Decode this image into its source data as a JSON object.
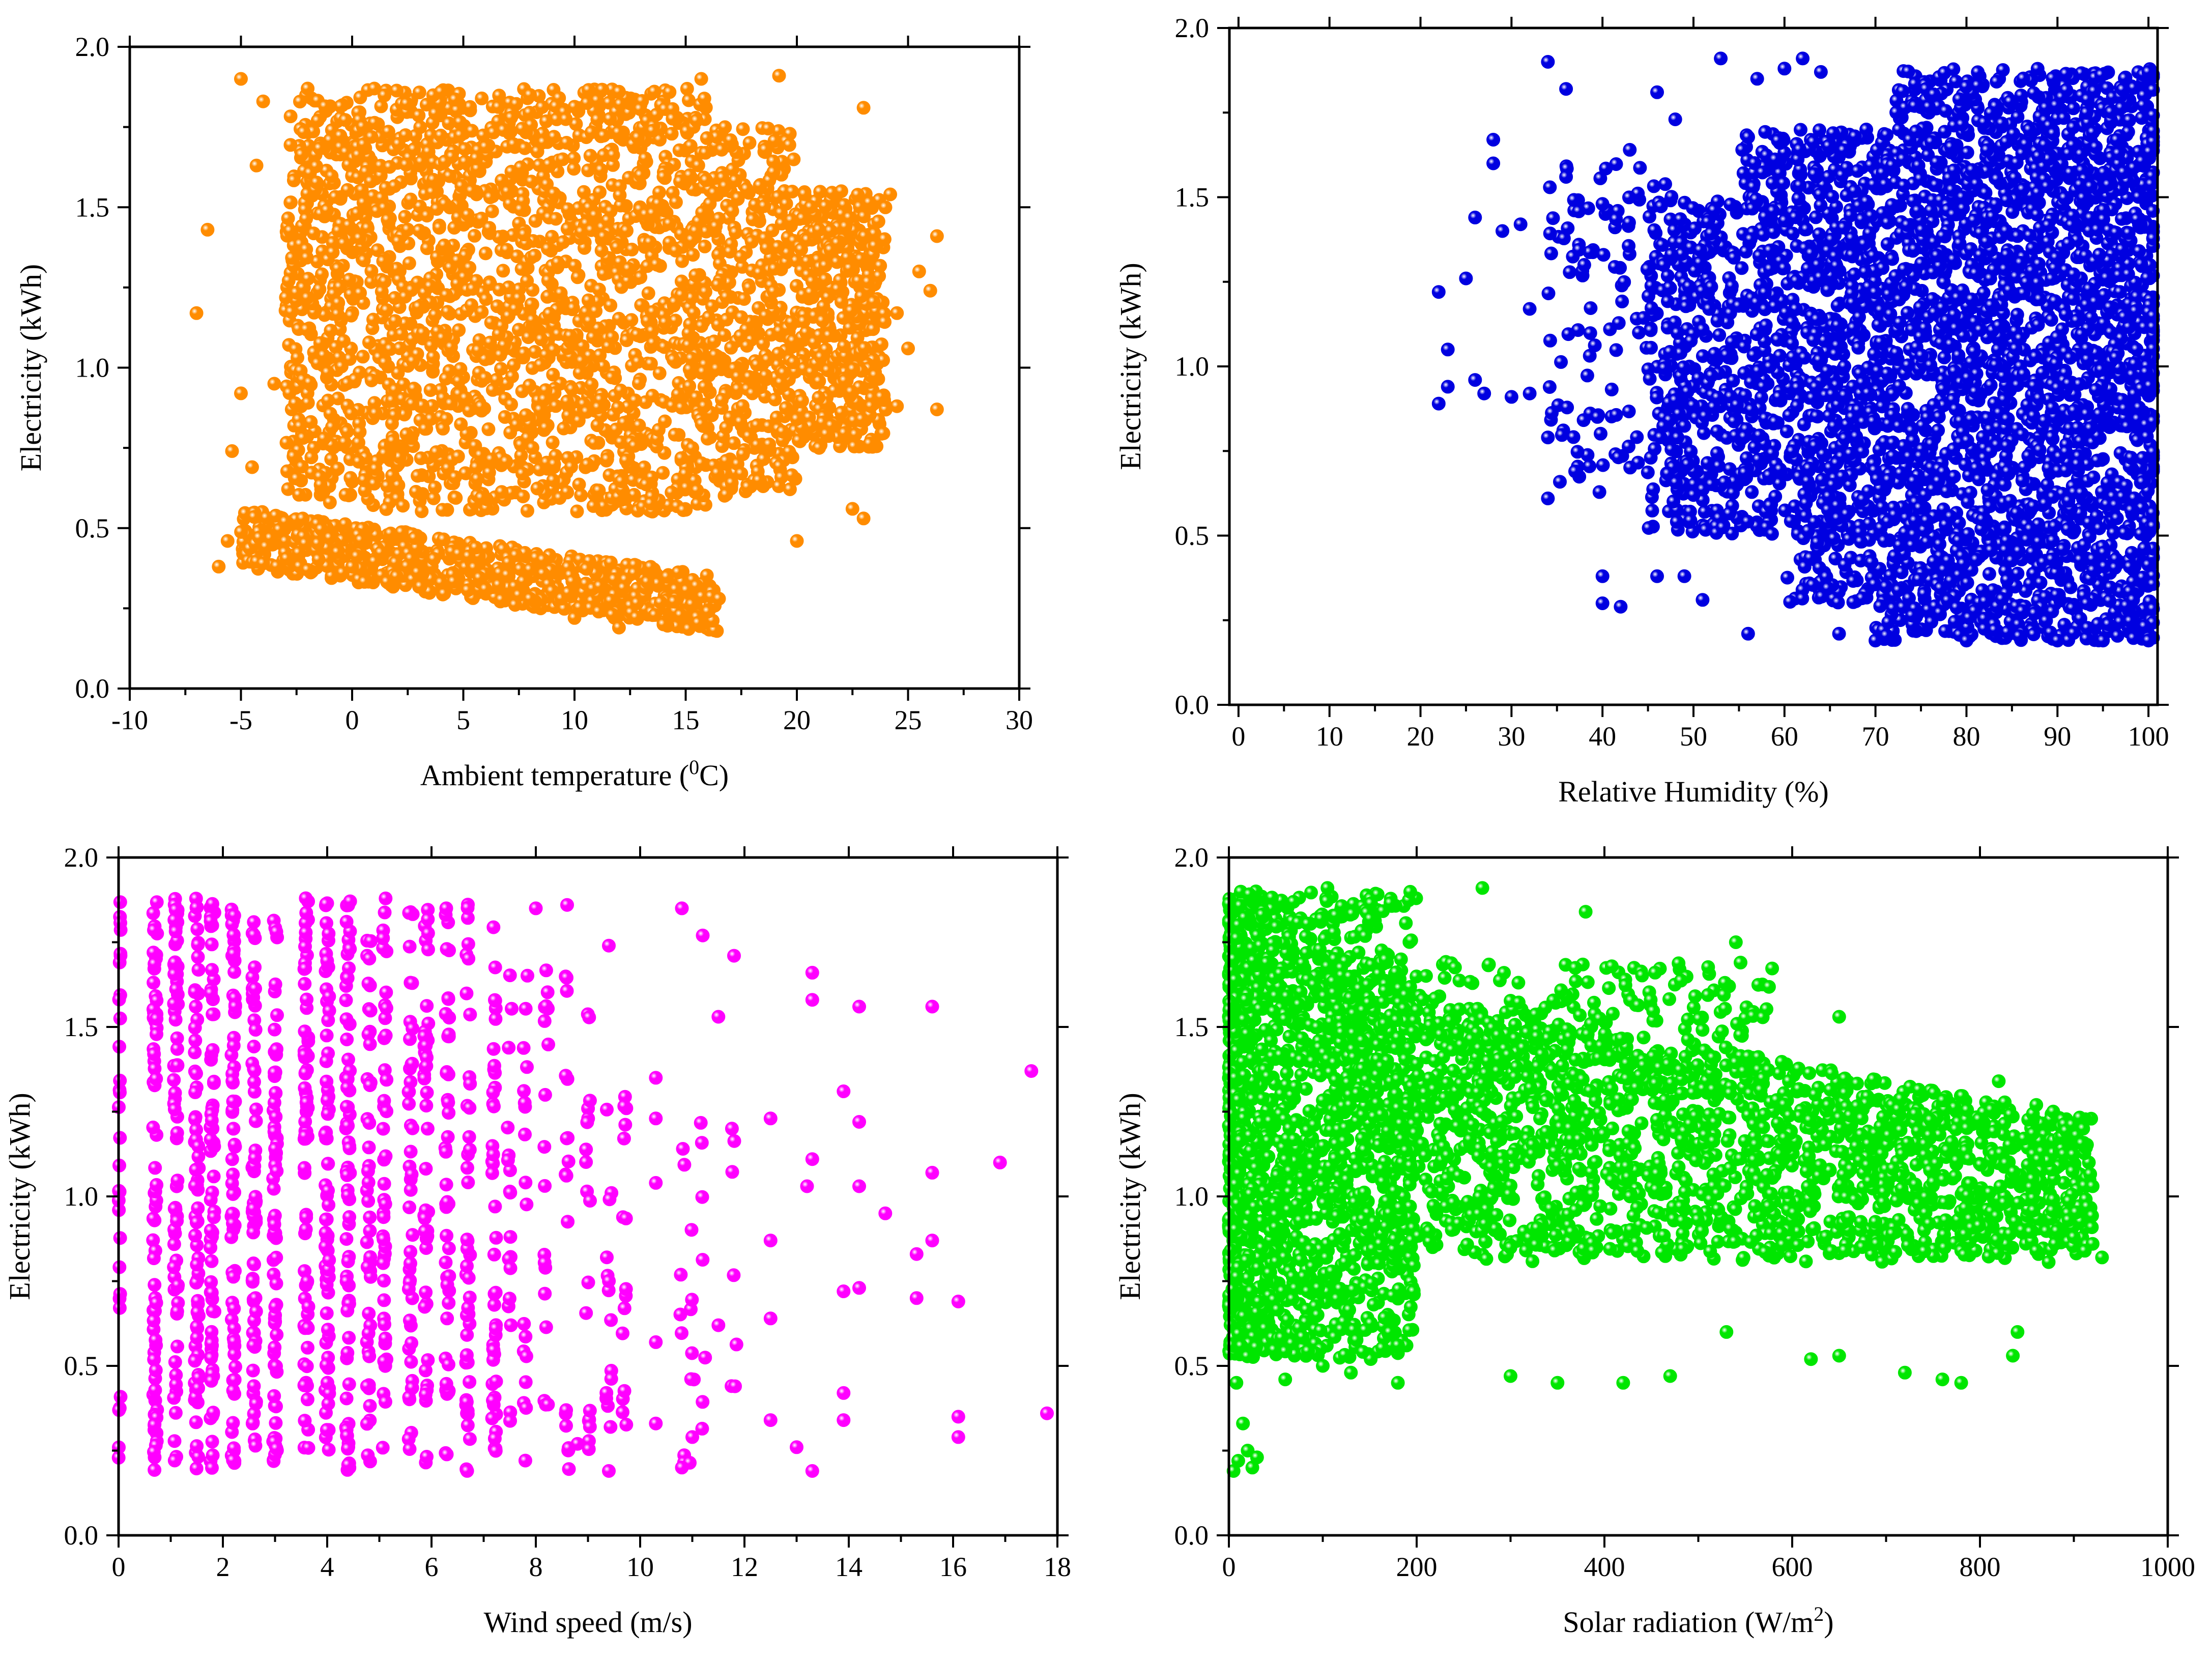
{
  "figure": {
    "description_panels": 4
  },
  "chart_data": [
    {
      "type": "scatter",
      "title": "",
      "xlabel": "Ambient temperature (",
      "xlabel_sup": "0",
      "xlabel_tail": "C)",
      "ylabel": "Electricity (kWh)",
      "xlim": [
        -10,
        30
      ],
      "ylim": [
        0.0,
        2.0
      ],
      "xticks": [
        "-10",
        "-5",
        "0",
        "5",
        "10",
        "15",
        "20",
        "25",
        "30"
      ],
      "yticks": [
        "0.0",
        "0.5",
        "1.0",
        "1.5",
        "2.0"
      ],
      "color": "#ff8c00",
      "series": [
        {
          "name": "Ambient temperature",
          "points": [
            [
              -7.0,
              1.17
            ],
            [
              -6.5,
              1.43
            ],
            [
              -6.0,
              0.38
            ],
            [
              -5.6,
              0.46
            ],
            [
              -5.4,
              0.74
            ],
            [
              -5.0,
              1.9
            ],
            [
              -5.0,
              0.92
            ],
            [
              -4.5,
              0.69
            ],
            [
              -4.3,
              1.63
            ],
            [
              -4.0,
              1.83
            ],
            [
              -3.5,
              0.95
            ],
            [
              -2.0,
              1.87
            ],
            [
              -1.0,
              0.58
            ],
            [
              1.0,
              1.87
            ],
            [
              4.0,
              1.86
            ],
            [
              8.0,
              1.85
            ],
            [
              12.0,
              1.86
            ],
            [
              15.7,
              1.9
            ],
            [
              19.2,
              1.91
            ],
            [
              23.0,
              1.81
            ],
            [
              23.5,
              1.38
            ],
            [
              24.2,
              1.54
            ],
            [
              24.5,
              1.17
            ],
            [
              24.5,
              0.88
            ],
            [
              25.0,
              1.06
            ],
            [
              25.5,
              1.3
            ],
            [
              26.0,
              1.24
            ],
            [
              26.3,
              1.41
            ],
            [
              26.3,
              0.87
            ],
            [
              23.0,
              0.53
            ],
            [
              22.5,
              0.56
            ],
            [
              21.0,
              0.75
            ],
            [
              20.0,
              0.46
            ],
            [
              17.5,
              0.67
            ],
            [
              -3.0,
              0.52
            ],
            [
              -1.0,
              0.47
            ],
            [
              16.0,
              0.24
            ],
            [
              14.0,
              0.2
            ],
            [
              12.0,
              0.19
            ],
            [
              10.0,
              0.22
            ],
            [
              8.0,
              0.28
            ],
            [
              6.0,
              0.31
            ],
            [
              4.0,
              0.33
            ],
            [
              2.0,
              0.35
            ],
            [
              0.0,
              0.38
            ],
            [
              -2.0,
              0.37
            ],
            [
              -4.0,
              0.39
            ],
            [
              16.5,
              0.28
            ],
            [
              18.0,
              0.92
            ],
            [
              20.0,
              0.84
            ],
            [
              22.0,
              0.86
            ],
            [
              21.0,
              1.43
            ],
            [
              22.0,
              1.55
            ]
          ]
        }
      ]
    },
    {
      "type": "scatter",
      "title": "",
      "xlabel": "Relative Humidity (%)",
      "ylabel": "Electricity (kWh)",
      "xlim": [
        -1,
        101
      ],
      "ylim": [
        0.0,
        2.0
      ],
      "xticks": [
        "0",
        "10",
        "20",
        "30",
        "40",
        "50",
        "60",
        "70",
        "80",
        "90",
        "100"
      ],
      "yticks": [
        "0.0",
        "0.5",
        "1.0",
        "1.5",
        "2.0"
      ],
      "color": "#0000e0",
      "series": [
        {
          "name": "Relative Humidity",
          "points": [
            [
              22.0,
              0.89
            ],
            [
              22.0,
              1.22
            ],
            [
              23.0,
              0.94
            ],
            [
              23.0,
              1.05
            ],
            [
              25.0,
              1.26
            ],
            [
              26.0,
              1.44
            ],
            [
              26.0,
              0.96
            ],
            [
              27.0,
              0.92
            ],
            [
              28.0,
              1.6
            ],
            [
              28.0,
              1.67
            ],
            [
              29.0,
              1.4
            ],
            [
              30.0,
              0.91
            ],
            [
              31.0,
              1.42
            ],
            [
              32.0,
              1.17
            ],
            [
              32.0,
              0.92
            ],
            [
              34.0,
              1.9
            ],
            [
              34.0,
              0.79
            ],
            [
              34.0,
              0.61
            ],
            [
              36.0,
              1.82
            ],
            [
              36.0,
              1.56
            ],
            [
              37.0,
              0.69
            ],
            [
              40.0,
              0.3
            ],
            [
              40.0,
              0.38
            ],
            [
              42.0,
              0.29
            ],
            [
              43.0,
              1.64
            ],
            [
              46.0,
              0.38
            ],
            [
              46.0,
              1.81
            ],
            [
              48.0,
              1.73
            ],
            [
              49.0,
              0.38
            ],
            [
              51.0,
              0.31
            ],
            [
              53.0,
              1.91
            ],
            [
              56.0,
              0.21
            ],
            [
              57.0,
              1.85
            ],
            [
              60.0,
              1.88
            ],
            [
              62.0,
              1.91
            ],
            [
              64.0,
              1.87
            ],
            [
              100.0,
              1.87
            ],
            [
              100.0,
              0.19
            ],
            [
              95.0,
              0.19
            ],
            [
              90.0,
              0.19
            ],
            [
              80.0,
              0.19
            ],
            [
              70.0,
              0.19
            ],
            [
              66.0,
              0.21
            ],
            [
              40.0,
              1.48
            ],
            [
              38.0,
              1.3
            ],
            [
              44.0,
              1.1
            ],
            [
              48.0,
              0.9
            ],
            [
              50.0,
              0.62
            ]
          ]
        }
      ]
    },
    {
      "type": "scatter",
      "title": "",
      "xlabel": "Wind speed (m/s)",
      "ylabel": "Electricity (kWh)",
      "xlim": [
        0,
        18
      ],
      "ylim": [
        0.0,
        2.0
      ],
      "xticks": [
        "0",
        "2",
        "4",
        "6",
        "8",
        "10",
        "12",
        "14",
        "16",
        "18"
      ],
      "yticks": [
        "0.0",
        "0.5",
        "1.0",
        "1.5",
        "2.0"
      ],
      "color": "#ff00ff",
      "series": [
        {
          "name": "Wind speed",
          "points": [
            [
              10.3,
              0.33
            ],
            [
              10.3,
              0.57
            ],
            [
              10.3,
              1.04
            ],
            [
              10.3,
              1.23
            ],
            [
              10.3,
              1.35
            ],
            [
              10.8,
              1.85
            ],
            [
              11.2,
              1.77
            ],
            [
              11.8,
              1.71
            ],
            [
              11.5,
              0.62
            ],
            [
              11.5,
              1.53
            ],
            [
              12.5,
              1.23
            ],
            [
              12.5,
              0.64
            ],
            [
              12.5,
              0.87
            ],
            [
              12.5,
              0.34
            ],
            [
              13.0,
              0.26
            ],
            [
              13.3,
              0.19
            ],
            [
              13.3,
              1.66
            ],
            [
              13.3,
              1.58
            ],
            [
              13.3,
              1.11
            ],
            [
              13.2,
              1.03
            ],
            [
              13.9,
              1.31
            ],
            [
              13.9,
              0.72
            ],
            [
              13.9,
              0.42
            ],
            [
              13.9,
              0.34
            ],
            [
              14.2,
              1.56
            ],
            [
              14.2,
              1.22
            ],
            [
              14.2,
              1.03
            ],
            [
              14.2,
              0.73
            ],
            [
              14.7,
              0.95
            ],
            [
              15.3,
              0.83
            ],
            [
              15.3,
              0.7
            ],
            [
              15.6,
              1.56
            ],
            [
              15.6,
              1.07
            ],
            [
              15.6,
              0.87
            ],
            [
              16.1,
              0.69
            ],
            [
              16.1,
              0.35
            ],
            [
              16.1,
              0.29
            ],
            [
              16.9,
              1.1
            ],
            [
              17.5,
              1.37
            ],
            [
              17.8,
              0.36
            ],
            [
              9.4,
              0.19
            ],
            [
              8.8,
              0.27
            ],
            [
              8.6,
              1.86
            ],
            [
              8.0,
              1.85
            ],
            [
              9.4,
              1.74
            ],
            [
              9.7,
              0.67
            ],
            [
              10.8,
              0.2
            ],
            [
              11.0,
              0.29
            ]
          ]
        }
      ]
    },
    {
      "type": "scatter",
      "title": "",
      "xlabel": "Solar radiation (W/m",
      "xlabel_sup": "2",
      "xlabel_tail": ")",
      "ylabel": "Electricity (kWh)",
      "xlim": [
        0,
        1000
      ],
      "ylim": [
        0.0,
        2.0
      ],
      "xticks": [
        "0",
        "200",
        "400",
        "600",
        "800",
        "1000"
      ],
      "yticks": [
        "0.0",
        "0.5",
        "1.0",
        "1.5",
        "2.0"
      ],
      "color": "#00e600",
      "series": [
        {
          "name": "Solar radiation",
          "points": [
            [
              5,
              0.19
            ],
            [
              10,
              0.22
            ],
            [
              15,
              0.33
            ],
            [
              20,
              0.25
            ],
            [
              25,
              0.2
            ],
            [
              30,
              0.23
            ],
            [
              8,
              0.45
            ],
            [
              270,
              1.91
            ],
            [
              105,
              1.91
            ],
            [
              380,
              1.84
            ],
            [
              540,
              1.75
            ],
            [
              545,
              1.69
            ],
            [
              650,
              1.53
            ],
            [
              860,
              0.84
            ],
            [
              880,
              0.86
            ],
            [
              900,
              0.88
            ],
            [
              920,
              0.86
            ],
            [
              930,
              0.82
            ],
            [
              910,
              1.2
            ],
            [
              920,
              1.03
            ],
            [
              860,
              1.27
            ],
            [
              820,
              1.34
            ],
            [
              780,
              0.45
            ],
            [
              760,
              0.46
            ],
            [
              720,
              0.48
            ],
            [
              650,
              0.53
            ],
            [
              620,
              0.52
            ],
            [
              530,
              0.6
            ],
            [
              470,
              0.47
            ],
            [
              420,
              0.45
            ],
            [
              350,
              0.45
            ],
            [
              300,
              0.47
            ],
            [
              180,
              0.45
            ],
            [
              60,
              0.46
            ],
            [
              100,
              0.5
            ],
            [
              130,
              0.48
            ],
            [
              840,
              0.6
            ],
            [
              835,
              0.53
            ]
          ]
        }
      ]
    }
  ]
}
